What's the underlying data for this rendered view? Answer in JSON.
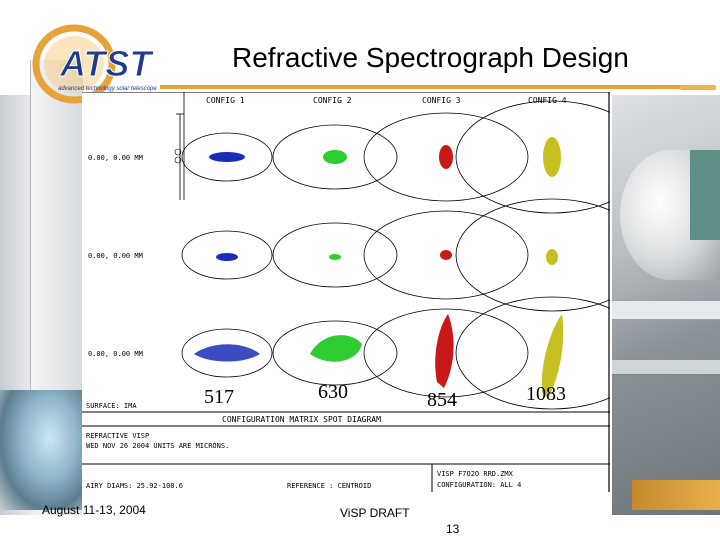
{
  "slide": {
    "title": "Refractive Spectrograph Design",
    "logo_text": "ATST",
    "logo_tagline": "advanced technology solar telescope"
  },
  "diagram": {
    "config_labels": [
      "CONFIG 1",
      "CONFIG 2",
      "CONFIG 3",
      "CONFIG 4"
    ],
    "row_labels": [
      "0.00, 0.00 MM",
      "0.00, 0.00 MM",
      "0.00, 0.00 MM"
    ],
    "wavelength_labels": [
      "517",
      "630",
      "854",
      "1083"
    ],
    "surface_label": "SURFACE: IMA",
    "diagram_title": "CONFIGURATION MATRIX SPOT DIAGRAM",
    "info_line1": "REFRACTIVE VISP",
    "info_line2": "WED NOV 26 2004  UNITS ARE MICRONS.",
    "airy_label": "AIRY DIAMS: 25.92-108.6",
    "reference_label": "REFERENCE : CENTROID",
    "file_label": "VISP F7O2O RRD.ZMX",
    "configuration_label": "CONFIGURATION: ALL 4",
    "spot_colors": {
      "blue": "#1a2db8",
      "green": "#2ecc2e",
      "red": "#c81818",
      "yellow": "#c8c020"
    }
  },
  "footer": {
    "date": "August 11-13, 2004",
    "subtitle": "ViSP DRAFT",
    "page": "13"
  }
}
